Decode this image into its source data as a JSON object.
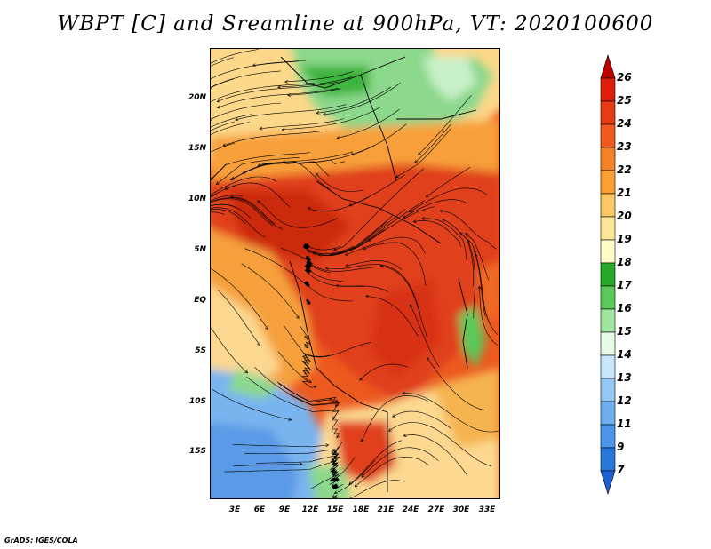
{
  "title": "WBPT [C] and Sreamline at 900hPa, VT: 2020100600",
  "credit": "GrADS: IGES/COLA",
  "y_axis_labels": [
    "20N",
    "15N",
    "10N",
    "5N",
    "EQ",
    "5S",
    "10S",
    "15S"
  ],
  "x_axis_labels": [
    "3E",
    "6E",
    "9E",
    "12E",
    "15E",
    "18E",
    "21E",
    "24E",
    "27E",
    "30E",
    "33E"
  ],
  "colorbar": {
    "labels": [
      "26",
      "25",
      "24",
      "23",
      "22",
      "21",
      "20",
      "19",
      "18",
      "17",
      "16",
      "15",
      "14",
      "13",
      "12",
      "11",
      "9",
      "7"
    ],
    "colors": [
      "#c00000",
      "#dc1e0a",
      "#e63c14",
      "#f05a1e",
      "#f58228",
      "#faa032",
      "#fac864",
      "#fce796",
      "#fefdc8",
      "#28aa28",
      "#5ac85a",
      "#a0e6a0",
      "#e6fae6",
      "#c8e6fa",
      "#96c8f5",
      "#6eaff0",
      "#4b96eb",
      "#2878dc",
      "#1e5fd2"
    ]
  }
}
